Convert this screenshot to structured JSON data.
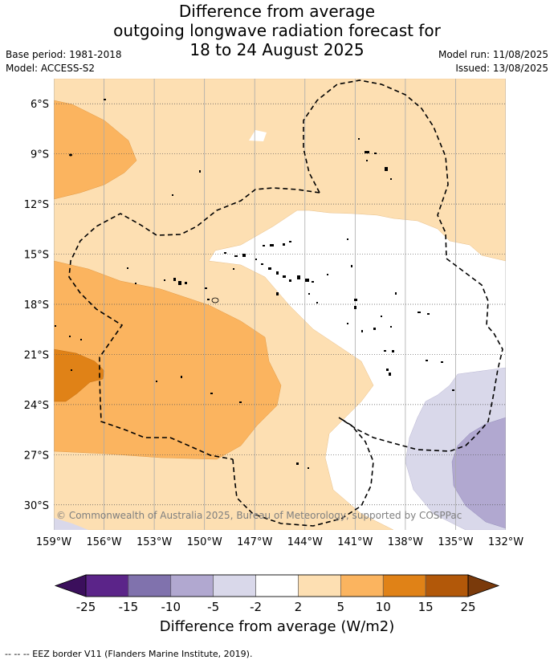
{
  "title": {
    "line1": "Difference from average",
    "line2": "outgoing longwave radiation forecast for",
    "line3": "18 to 24 August 2025"
  },
  "meta": {
    "base_period": "Base period: 1981-2018",
    "model": "Model: ACCESS-S2",
    "model_run": "Model run: 11/08/2025",
    "issued": "Issued: 13/08/2025"
  },
  "map": {
    "lat_labels": [
      "6°S",
      "9°S",
      "12°S",
      "15°S",
      "18°S",
      "21°S",
      "24°S",
      "27°S",
      "30°S"
    ],
    "lon_labels": [
      "159°W",
      "156°W",
      "153°W",
      "150°W",
      "147°W",
      "144°W",
      "141°W",
      "138°W",
      "135°W",
      "132°W"
    ],
    "lat_range": [
      -31.5,
      -4.5
    ],
    "lon_range": [
      -159,
      -132
    ],
    "grid": true,
    "copyright": "© Commonwealth of Australia 2025, Bureau of Meteorology, supported by COSPPac"
  },
  "colorbar": {
    "title": "Difference from average (W/m2)",
    "tick_labels": [
      "-25",
      "-15",
      "-10",
      "-5",
      "-2",
      "2",
      "5",
      "10",
      "15",
      "25"
    ],
    "colors": {
      "under": "#3b0f5c",
      "bins": [
        "#5b2489",
        "#8072ad",
        "#b1a8d0",
        "#d9d8ea",
        "#ffffff",
        "#fddfb2",
        "#fbb45f",
        "#e08217",
        "#b25809"
      ],
      "over": "#7a3a0b"
    }
  },
  "footer": {
    "eez_note": "--  --  -- EEZ border V11 (Flanders Marine Institute, 2019)."
  }
}
